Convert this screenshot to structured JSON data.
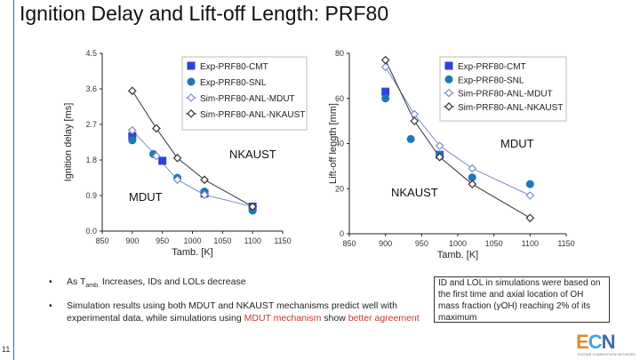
{
  "slide": {
    "title": "Ignition Delay and Lift-off Length: PRF80",
    "page_number": "11"
  },
  "bullets": [
    {
      "prefix": "As T",
      "sub": "amb.",
      "suffix": " Increases, IDs and LOLs decrease"
    },
    {
      "pre": "Simulation results using both MDUT and NKAUST mechanisms predict well with experimental data, while simulations using ",
      "highlight": "MDUT mechanism",
      "mid": " show ",
      "highlight2": "better agreement"
    }
  ],
  "note": {
    "text": "ID and LOL in simulations were based on the first time and axial location of OH mass fraction (yOH) reaching 2% of its maximum"
  },
  "logo": {
    "text": "ECN",
    "subtitle": "ENGINE COMBUSTION NETWORK"
  },
  "colors": {
    "exp": "#2e45d6",
    "snl": "#1f78b4",
    "mdut": "#7a8fc9",
    "nkaust": "#333333",
    "highlight": "#c0392b"
  },
  "chart_data": [
    {
      "type": "scatter",
      "title": "",
      "xlabel": "Tamb. [K]",
      "ylabel": "Ignition delay [ms]",
      "xlim": [
        850,
        1150
      ],
      "ylim": [
        0,
        4.5
      ],
      "xticks": [
        "850",
        "900",
        "950",
        "1000",
        "1050",
        "1100",
        "1150"
      ],
      "yticks": [
        "0.0",
        "0.9",
        "1.8",
        "2.7",
        "3.6",
        "4.5"
      ],
      "legend": [
        "Exp-PRF80-CMT",
        "Exp-PRF80-SNL",
        "Sim-PRF80-ANL-MDUT",
        "Sim-PRF80-ANL-NKAUST"
      ],
      "annotations": [
        "NKAUST",
        "MDUT"
      ],
      "series": [
        {
          "name": "Exp-PRF80-CMT",
          "x": [
            900,
            950,
            1020,
            1100
          ],
          "y": [
            2.4,
            1.78,
            0.95,
            0.62
          ]
        },
        {
          "name": "Exp-PRF80-SNL",
          "x": [
            900,
            935,
            975,
            1020,
            1100
          ],
          "y": [
            2.3,
            1.95,
            1.35,
            1.0,
            0.52
          ]
        },
        {
          "name": "Sim-PRF80-ANL-MDUT",
          "x": [
            900,
            940,
            975,
            1020,
            1100
          ],
          "y": [
            2.55,
            1.9,
            1.3,
            0.92,
            0.62
          ]
        },
        {
          "name": "Sim-PRF80-ANL-NKAUST",
          "x": [
            900,
            940,
            975,
            1020,
            1100
          ],
          "y": [
            3.55,
            2.6,
            1.85,
            1.3,
            0.62
          ]
        }
      ]
    },
    {
      "type": "scatter",
      "title": "",
      "xlabel": "Tamb. [K]",
      "ylabel": "Lift-off length [mm]",
      "xlim": [
        850,
        1150
      ],
      "ylim": [
        0,
        80
      ],
      "xticks": [
        "850",
        "900",
        "950",
        "1000",
        "1050",
        "1100",
        "1150"
      ],
      "yticks": [
        "0",
        "20",
        "40",
        "60",
        "80"
      ],
      "legend": [
        "Exp-PRF80-CMT",
        "Exp-PRF80-SNL",
        "Sim-PRF80-ANL-MDUT",
        "Sim-PRF80-ANL-NKAUST"
      ],
      "annotations": [
        "MDUT",
        "NKAUST"
      ],
      "series": [
        {
          "name": "Exp-PRF80-CMT",
          "x": [
            900,
            975
          ],
          "y": [
            63,
            35
          ]
        },
        {
          "name": "Exp-PRF80-SNL",
          "x": [
            900,
            935,
            975,
            1020,
            1100
          ],
          "y": [
            60,
            42,
            35,
            25,
            22
          ]
        },
        {
          "name": "Sim-PRF80-ANL-MDUT",
          "x": [
            900,
            940,
            975,
            1020,
            1100
          ],
          "y": [
            74,
            53,
            39,
            29,
            17
          ]
        },
        {
          "name": "Sim-PRF80-ANL-NKAUST",
          "x": [
            900,
            940,
            975,
            1020,
            1100
          ],
          "y": [
            77,
            50,
            34,
            22,
            7
          ]
        }
      ]
    }
  ]
}
